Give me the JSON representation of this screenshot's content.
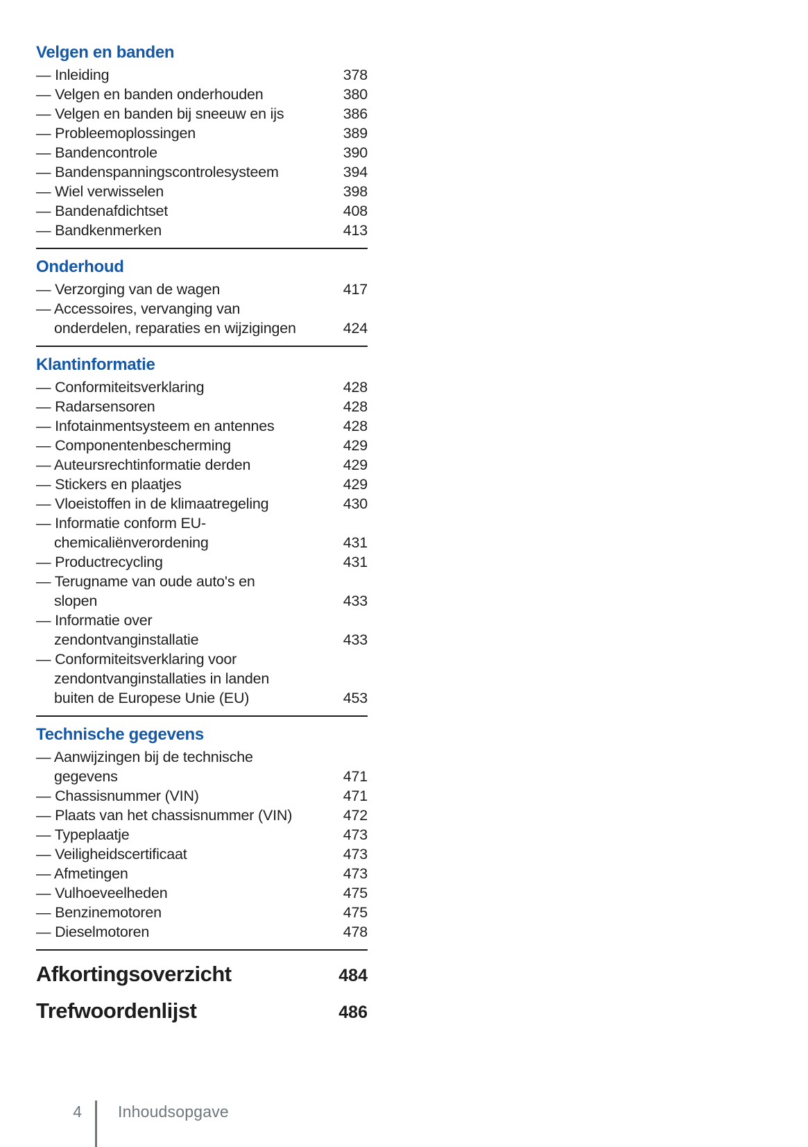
{
  "document": {
    "toc": {
      "bullet": "—",
      "sections": [
        {
          "title": "Velgen en banden",
          "items": [
            {
              "label": "Inleiding",
              "page": "378"
            },
            {
              "label": "Velgen en banden onderhouden",
              "page": "380"
            },
            {
              "label": "Velgen en banden bij sneeuw en ijs",
              "page": "386"
            },
            {
              "label": "Probleemoplossingen",
              "page": "389"
            },
            {
              "label": "Bandencontrole",
              "page": "390"
            },
            {
              "label": "Bandenspanningscontrolesysteem",
              "page": "394"
            },
            {
              "label": "Wiel verwisselen",
              "page": "398"
            },
            {
              "label": "Bandenafdichtset",
              "page": "408"
            },
            {
              "label": "Bandkenmerken",
              "page": "413"
            }
          ]
        },
        {
          "title": "Onderhoud",
          "items": [
            {
              "label": "Verzorging van de wagen",
              "page": "417"
            },
            {
              "label": "Accessoires, vervanging van\nonderdelen, reparaties en wijzigingen",
              "page": "424"
            }
          ]
        },
        {
          "title": "Klantinformatie",
          "items": [
            {
              "label": "Conformiteitsverklaring",
              "page": "428"
            },
            {
              "label": "Radarsensoren",
              "page": "428"
            },
            {
              "label": "Infotainmentsysteem en antennes",
              "page": "428"
            },
            {
              "label": "Componentenbescherming",
              "page": "429"
            },
            {
              "label": "Auteursrechtinformatie derden",
              "page": "429"
            },
            {
              "label": "Stickers en plaatjes",
              "page": "429"
            },
            {
              "label": "Vloeistoffen in de klimaatregeling",
              "page": "430"
            },
            {
              "label": "Informatie conform EU-\nchemicaliënverordening",
              "page": "431"
            },
            {
              "label": "Productrecycling",
              "page": "431"
            },
            {
              "label": "Terugname van oude auto's en\nslopen",
              "page": "433"
            },
            {
              "label": "Informatie over\nzendontvanginstallatie",
              "page": "433"
            },
            {
              "label": "Conformiteitsverklaring voor\nzendontvanginstallaties in landen\nbuiten de Europese Unie (EU)",
              "page": "453"
            }
          ]
        },
        {
          "title": "Technische gegevens",
          "items": [
            {
              "label": "Aanwijzingen bij de technische\ngegevens",
              "page": "471"
            },
            {
              "label": "Chassisnummer (VIN)",
              "page": "471"
            },
            {
              "label": "Plaats van het chassisnummer (VIN)",
              "page": "472"
            },
            {
              "label": "Typeplaatje",
              "page": "473"
            },
            {
              "label": "Veiligheidscertificaat",
              "page": "473"
            },
            {
              "label": "Afmetingen",
              "page": "473"
            },
            {
              "label": "Vulhoeveelheden",
              "page": "475"
            },
            {
              "label": "Benzinemotoren",
              "page": "475"
            },
            {
              "label": "Dieselmotoren",
              "page": "478"
            }
          ]
        }
      ],
      "major_entries": [
        {
          "label": "Afkortingsoverzicht",
          "page": "484"
        },
        {
          "label": "Trefwoordenlijst",
          "page": "486"
        }
      ]
    },
    "footer": {
      "page_number": "4",
      "section_label": "Inhoudsopgave"
    }
  },
  "colors": {
    "heading_blue": "#1558a5",
    "text": "#1d1d1d",
    "rule": "#1c1c1c",
    "footer_gray": "#6d777b",
    "background": "#ffffff"
  }
}
